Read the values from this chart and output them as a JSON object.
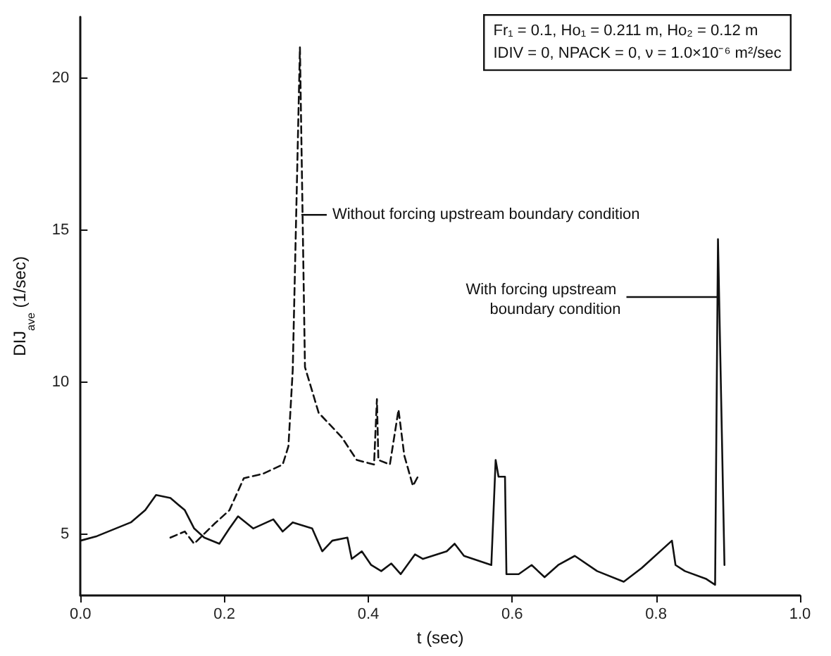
{
  "chart_data": {
    "type": "line",
    "xlabel": "t (sec)",
    "ylabel": "DIJ$_{ave}$ (1/sec)",
    "xlim": [
      0,
      1
    ],
    "ylim": [
      3,
      22
    ],
    "xticks": [
      {
        "value": 0,
        "label": "0.0"
      },
      0.2,
      0.4,
      0.6,
      0.8,
      {
        "value": 1,
        "label": "1.0"
      }
    ],
    "yticks": [
      5,
      10,
      15,
      20
    ],
    "marker": "none",
    "grid": false,
    "series": [
      {
        "color": "#111111",
        "line_style": "solid",
        "x": [
          0,
          0.023,
          0.07,
          0.09,
          0.105,
          0.125,
          0.145,
          0.158,
          0.172,
          0.193,
          0.207,
          0.219,
          0.24,
          0.268,
          0.281,
          0.295,
          0.322,
          0.336,
          0.35,
          0.371,
          0.377,
          0.391,
          0.404,
          0.418,
          0.432,
          0.445,
          0.465,
          0.476,
          0.509,
          0.52,
          0.533,
          0.571,
          0.577,
          0.581,
          0.59,
          0.592,
          0.609,
          0.627,
          0.645,
          0.664,
          0.687,
          0.718,
          0.755,
          0.78,
          0.822,
          0.827,
          0.84,
          0.869,
          0.882,
          0.886,
          0.895
        ],
        "values": [
          4.8,
          4.95,
          5.4,
          5.8,
          6.3,
          6.2,
          5.8,
          5.2,
          4.9,
          4.7,
          5.2,
          5.6,
          5.2,
          5.5,
          5.1,
          5.4,
          5.2,
          4.45,
          4.8,
          4.9,
          4.2,
          4.45,
          4.0,
          3.8,
          4.05,
          3.7,
          4.35,
          4.2,
          4.45,
          4.7,
          4.3,
          4.0,
          7.45,
          6.9,
          6.9,
          3.7,
          3.7,
          4.0,
          3.6,
          4.0,
          4.3,
          3.8,
          3.45,
          3.9,
          4.8,
          4.0,
          3.8,
          3.55,
          3.35,
          14.7,
          4.0
        ]
      },
      {
        "color": "#111111",
        "line_style": "dashed",
        "x": [
          0.125,
          0.145,
          0.158,
          0.186,
          0.207,
          0.227,
          0.254,
          0.281,
          0.289,
          0.295,
          0.305,
          0.312,
          0.331,
          0.363,
          0.384,
          0.408,
          0.412,
          0.414,
          0.43,
          0.442,
          0.45,
          0.462,
          0.47
        ],
        "values": [
          4.9,
          5.1,
          4.7,
          5.35,
          5.8,
          6.85,
          7.0,
          7.3,
          7.9,
          10.4,
          21.0,
          10.5,
          9.0,
          8.2,
          7.45,
          7.3,
          9.45,
          7.45,
          7.3,
          9.1,
          7.6,
          6.6,
          6.95
        ]
      }
    ],
    "annotations": [
      "Fr₁ = 0.1, Ho₁ = 0.211 m, Ho₂ = 0.12 m",
      "IDIV = 0, NPACK = 0, ν = 1.0×10⁻⁶ m²/sec",
      {
        "text": "Without forcing upstream boundary condition",
        "x": 0.307,
        "y": 15.5
      },
      {
        "text": "With forcing upstream boundary condition",
        "x": 0.886,
        "y": 12.8
      }
    ]
  }
}
